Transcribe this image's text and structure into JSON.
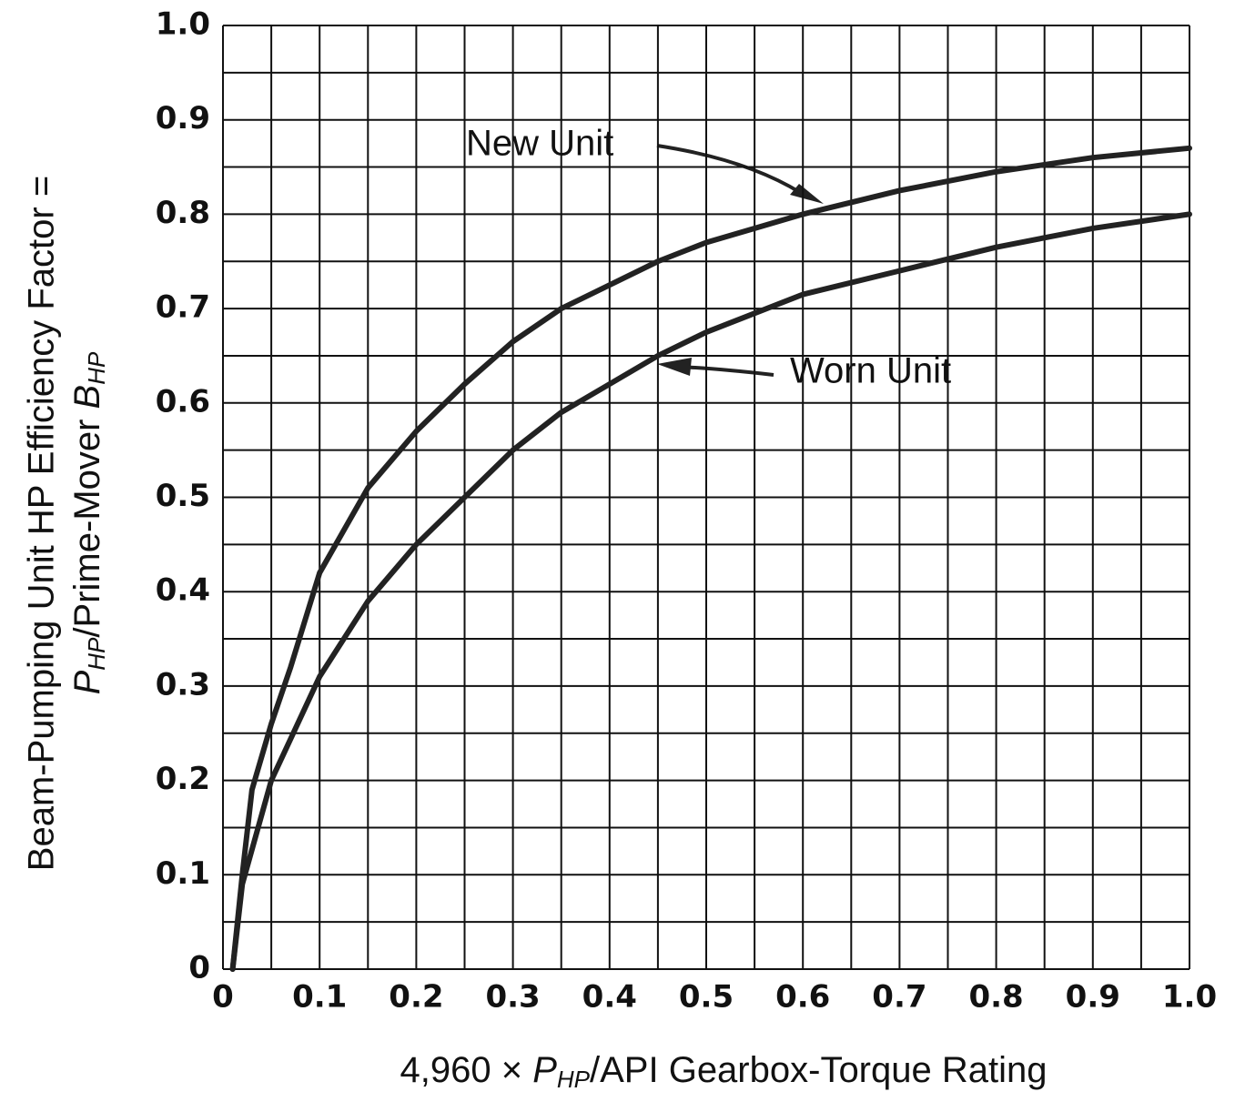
{
  "chart_data": {
    "type": "line",
    "xlabel": [
      "4,960 × ",
      "P",
      "HP",
      "/API Gearbox-Torque Rating"
    ],
    "ylabel": [
      [
        "Beam-Pumping Unit HP Efficiency Factor ="
      ],
      [
        "P",
        "HP",
        "/Prime-Mover ",
        "B",
        "HP"
      ]
    ],
    "xlim": [
      0,
      1
    ],
    "ylim": [
      0,
      1
    ],
    "xticks": [
      0,
      0.1,
      0.2,
      0.3,
      0.4,
      0.5,
      0.6,
      0.7,
      0.8,
      0.9,
      {
        "value": 1,
        "label": "1.0"
      }
    ],
    "yticks": [
      0,
      0.1,
      0.2,
      0.3,
      0.4,
      0.5,
      0.6,
      0.7,
      0.8,
      0.9,
      {
        "value": 1,
        "label": "1.0"
      }
    ],
    "x_minor_ticks": [
      0.05,
      0.15,
      0.25,
      0.35,
      0.45,
      0.55,
      0.65,
      0.75,
      0.85,
      0.95
    ],
    "y_minor_ticks": [
      0.05,
      0.15,
      0.25,
      0.35,
      0.45,
      0.55,
      0.65,
      0.75,
      0.85,
      0.95
    ],
    "grid": true,
    "series": [
      {
        "name": "New Unit",
        "color": "#222222",
        "x": [
          0.01,
          0.02,
          0.03,
          0.05,
          0.07,
          0.1,
          0.15,
          0.2,
          0.25,
          0.3,
          0.35,
          0.4,
          0.45,
          0.5,
          0.6,
          0.7,
          0.8,
          0.9,
          1.0
        ],
        "values": [
          0,
          0.1,
          0.19,
          0.26,
          0.32,
          0.42,
          0.51,
          0.57,
          0.62,
          0.665,
          0.7,
          0.725,
          0.75,
          0.77,
          0.8,
          0.825,
          0.845,
          0.86,
          0.87
        ]
      },
      {
        "name": "Worn Unit",
        "color": "#222222",
        "x": [
          0.01,
          0.02,
          0.05,
          0.1,
          0.15,
          0.2,
          0.25,
          0.3,
          0.35,
          0.4,
          0.45,
          0.5,
          0.6,
          0.7,
          0.8,
          0.9,
          1.0
        ],
        "values": [
          0,
          0.09,
          0.2,
          0.31,
          0.39,
          0.45,
          0.5,
          0.55,
          0.59,
          0.62,
          0.65,
          0.675,
          0.715,
          0.74,
          0.765,
          0.785,
          0.8
        ]
      }
    ]
  }
}
